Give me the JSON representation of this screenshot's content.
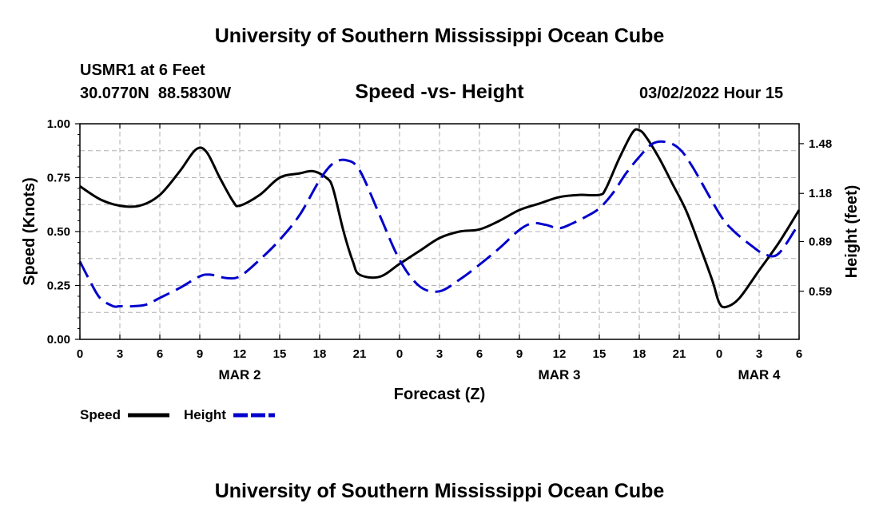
{
  "header": {
    "main_title": "University of Southern Mississippi Ocean Cube",
    "station": "USMR1 at 6 Feet",
    "lat": "30.0770N",
    "lon": "88.5830W",
    "chart_title": "Speed -vs- Height",
    "date": "03/02/2022 Hour 15"
  },
  "footer": {
    "title": "University of Southern Mississippi Ocean Cube"
  },
  "colors": {
    "speed": "#000000",
    "height": "#0000cc",
    "grid": "#b0b0b0"
  },
  "chart_data": {
    "type": "line",
    "title": "Speed -vs- Height",
    "xlabel": "Forecast (Z)",
    "ylabel": "Speed (Knots)",
    "ylabel_right": "Height (feet)",
    "x_range": [
      0,
      54
    ],
    "ylim": [
      0,
      1
    ],
    "ylim_right": [
      0.3,
      1.6
    ],
    "x_ticks": [
      {
        "x": 0,
        "label": "0"
      },
      {
        "x": 3,
        "label": "3"
      },
      {
        "x": 6,
        "label": "6"
      },
      {
        "x": 9,
        "label": "9"
      },
      {
        "x": 12,
        "label": "12"
      },
      {
        "x": 15,
        "label": "15"
      },
      {
        "x": 18,
        "label": "18"
      },
      {
        "x": 21,
        "label": "21"
      },
      {
        "x": 24,
        "label": "0"
      },
      {
        "x": 27,
        "label": "3"
      },
      {
        "x": 30,
        "label": "6"
      },
      {
        "x": 33,
        "label": "9"
      },
      {
        "x": 36,
        "label": "12"
      },
      {
        "x": 39,
        "label": "15"
      },
      {
        "x": 42,
        "label": "18"
      },
      {
        "x": 45,
        "label": "21"
      },
      {
        "x": 48,
        "label": "0"
      },
      {
        "x": 51,
        "label": "3"
      },
      {
        "x": 54,
        "label": "6"
      }
    ],
    "date_labels": [
      {
        "x": 12,
        "label": "MAR 2"
      },
      {
        "x": 36,
        "label": "MAR 3"
      },
      {
        "x": 51,
        "label": "MAR 4"
      }
    ],
    "y_ticks": [
      {
        "v": 0.0,
        "label": "0.00"
      },
      {
        "v": 0.25,
        "label": "0.25"
      },
      {
        "v": 0.5,
        "label": "0.50"
      },
      {
        "v": 0.75,
        "label": "0.75"
      },
      {
        "v": 1.0,
        "label": "1.00"
      }
    ],
    "y_ticks_right": [
      {
        "v": 0.59,
        "label": "0.59"
      },
      {
        "v": 0.89,
        "label": "0.89"
      },
      {
        "v": 1.18,
        "label": "1.18"
      },
      {
        "v": 1.48,
        "label": "1.48"
      }
    ],
    "x_grid": [
      0,
      3,
      6,
      9,
      12,
      15,
      18,
      21,
      24,
      27,
      30,
      33,
      36,
      39,
      42,
      45,
      48,
      51,
      54
    ],
    "y_grid": [
      0.125,
      0.25,
      0.375,
      0.5,
      0.625,
      0.75,
      0.875,
      1.0
    ],
    "series": [
      {
        "name": "Speed",
        "axis": "left",
        "style": "solid",
        "x": [
          0,
          1.5,
          3,
          4.5,
          6,
          7.5,
          8.7,
          9.5,
          10.5,
          11.5,
          12,
          13.5,
          15,
          16.5,
          17.5,
          18.5,
          19,
          19.8,
          20.5,
          21,
          22.5,
          24,
          25.5,
          27,
          28.5,
          30,
          31.5,
          33,
          34.5,
          36,
          37.5,
          39,
          39.5,
          40.5,
          41.5,
          42,
          42.5,
          43.5,
          44.5,
          45.5,
          46.5,
          47.5,
          48,
          48.5,
          49.5,
          51,
          52.5,
          54
        ],
        "values": [
          0.71,
          0.65,
          0.62,
          0.62,
          0.67,
          0.78,
          0.88,
          0.87,
          0.75,
          0.64,
          0.62,
          0.67,
          0.75,
          0.77,
          0.78,
          0.75,
          0.7,
          0.5,
          0.36,
          0.3,
          0.29,
          0.35,
          0.41,
          0.47,
          0.5,
          0.51,
          0.55,
          0.6,
          0.63,
          0.66,
          0.67,
          0.67,
          0.7,
          0.84,
          0.96,
          0.97,
          0.94,
          0.84,
          0.72,
          0.6,
          0.44,
          0.27,
          0.17,
          0.15,
          0.19,
          0.32,
          0.45,
          0.6
        ]
      },
      {
        "name": "Height",
        "axis": "right",
        "style": "dashed",
        "x": [
          0,
          0.7,
          1.5,
          2.5,
          3,
          4,
          5,
          6,
          7.5,
          9,
          9.8,
          11,
          12,
          13.5,
          15,
          16.5,
          18,
          19,
          20,
          21,
          22.5,
          24,
          25.5,
          27,
          28.5,
          30,
          31.5,
          33,
          34,
          35,
          36,
          37,
          38,
          39,
          40,
          41,
          42,
          43,
          44,
          45,
          46,
          48,
          49,
          50.5,
          51.5,
          52.5,
          54
        ],
        "values": [
          0.77,
          0.66,
          0.55,
          0.5,
          0.5,
          0.5,
          0.51,
          0.55,
          0.61,
          0.68,
          0.69,
          0.67,
          0.68,
          0.78,
          0.9,
          1.05,
          1.26,
          1.36,
          1.38,
          1.32,
          1.05,
          0.78,
          0.62,
          0.59,
          0.66,
          0.75,
          0.85,
          0.96,
          1.0,
          0.99,
          0.97,
          1.0,
          1.04,
          1.09,
          1.18,
          1.3,
          1.4,
          1.48,
          1.49,
          1.45,
          1.34,
          1.06,
          0.96,
          0.86,
          0.81,
          0.82,
          1.0
        ]
      }
    ],
    "legend": [
      {
        "name": "Speed",
        "style": "solid"
      },
      {
        "name": "Height",
        "style": "dashed"
      }
    ],
    "legend_position": "bottom-left"
  }
}
